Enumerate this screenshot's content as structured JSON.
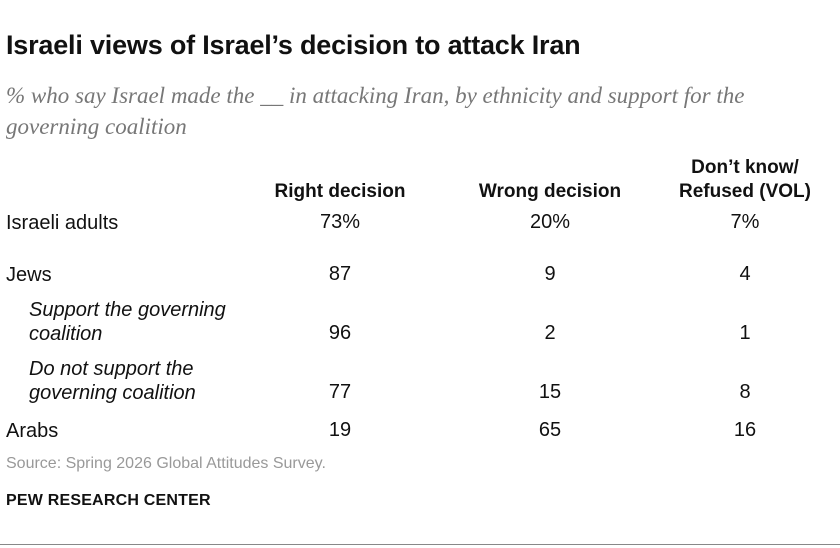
{
  "title": "Israeli views of Israel’s decision to attack Iran",
  "subtitle": "% who say Israel made the __ in attacking Iran, by ethnicity and support for the governing coalition",
  "columns": [
    "Right decision",
    "Wrong decision",
    "Don’t know/ Refused (VOL)"
  ],
  "rows": [
    {
      "label": "Israeli adults",
      "values": [
        "73%",
        "20%",
        "7%"
      ]
    },
    {
      "label": "Jews",
      "values": [
        "87",
        "9",
        "4"
      ]
    },
    {
      "label": "Support the governing coalition",
      "values": [
        "96",
        "2",
        "1"
      ]
    },
    {
      "label": "Do not support the governing coalition",
      "values": [
        "77",
        "15",
        "8"
      ]
    },
    {
      "label": "Arabs",
      "values": [
        "19",
        "65",
        "16"
      ]
    }
  ],
  "source": "Source: Spring 2026 Global Attitudes Survey.",
  "credit": "PEW RESEARCH CENTER",
  "chart_data": {
    "type": "table",
    "title": "Israeli views of Israel’s decision to attack Iran",
    "subtitle": "% who say Israel made the __ in attacking Iran, by ethnicity and support for the governing coalition",
    "columns": [
      "Right decision",
      "Wrong decision",
      "Don’t know/ Refused (VOL)"
    ],
    "categories": [
      "Israeli adults",
      "Jews",
      "Support the governing coalition",
      "Do not support the governing coalition",
      "Arabs"
    ],
    "series": [
      {
        "name": "Right decision",
        "values": [
          73,
          87,
          96,
          77,
          19
        ]
      },
      {
        "name": "Wrong decision",
        "values": [
          20,
          9,
          2,
          15,
          65
        ]
      },
      {
        "name": "Don’t know/ Refused (VOL)",
        "values": [
          7,
          4,
          1,
          8,
          16
        ]
      }
    ]
  }
}
